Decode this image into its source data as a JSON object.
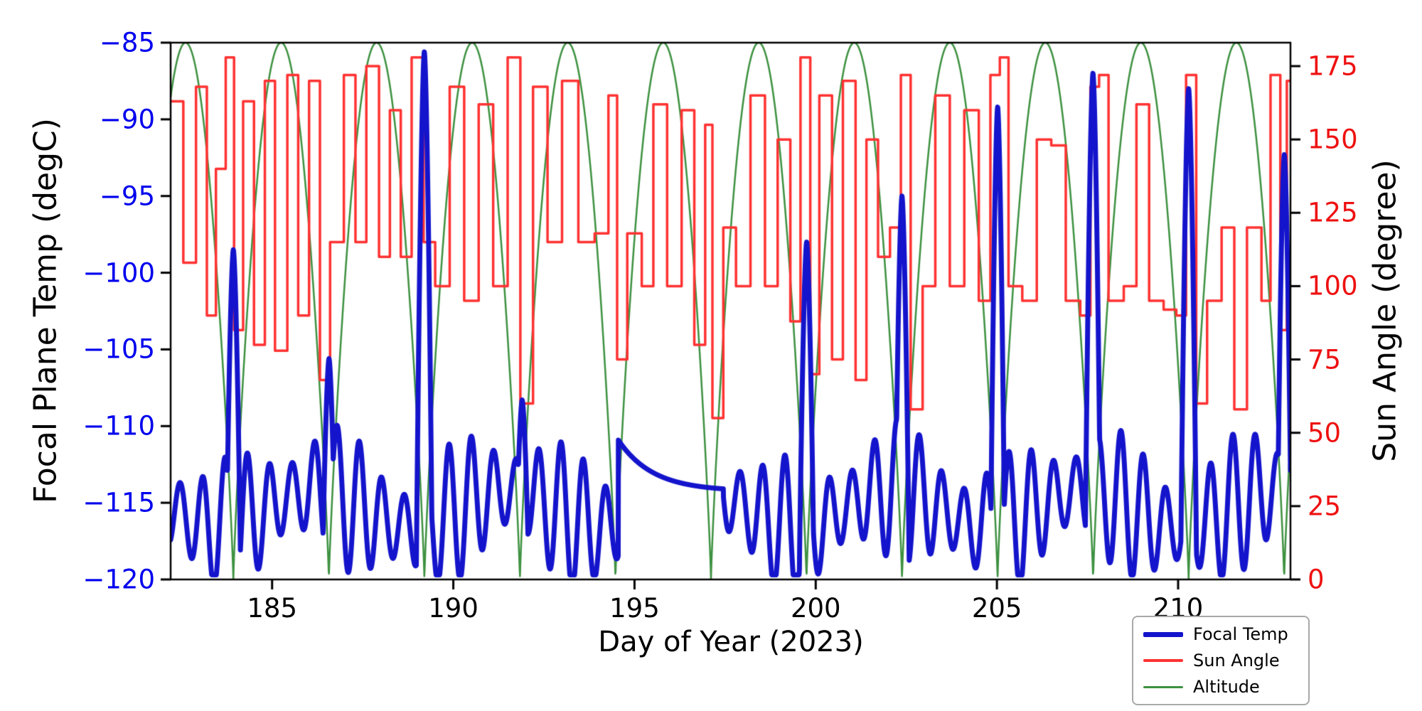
{
  "chart_data": {
    "type": "line",
    "title": "",
    "xlabel": "Day of Year (2023)",
    "ylabel_left": "Focal Plane Temp (degC)",
    "ylabel_right": "Sun Angle (degree)",
    "xlim": [
      182.2,
      213.1
    ],
    "ylim_left": [
      -120,
      -85
    ],
    "ylim_right": [
      0,
      183
    ],
    "grid": false,
    "x_ticks": {
      "values": [
        185,
        190,
        195,
        200,
        205,
        210
      ],
      "labels": [
        "185",
        "190",
        "195",
        "200",
        "205",
        "210"
      ]
    },
    "y_ticks_left": {
      "values": [
        -85,
        -90,
        -95,
        -100,
        -105,
        -110,
        -115,
        -120
      ],
      "labels": [
        "−85",
        "−90",
        "−95",
        "−100",
        "−105",
        "−110",
        "−115",
        "−120"
      ],
      "color": "#0000ee"
    },
    "y_ticks_right": {
      "values": [
        175,
        150,
        125,
        100,
        75,
        50,
        25,
        0
      ],
      "labels": [
        "175",
        "150",
        "125",
        "100",
        "75",
        "50",
        "25",
        "0"
      ],
      "color": "#ee1111"
    },
    "legend": [
      {
        "label": "Focal Temp",
        "series": "focal_temp"
      },
      {
        "label": "Sun Angle",
        "series": "sun_angle"
      },
      {
        "label": "Altitude",
        "series": "altitude"
      }
    ],
    "legend_position": "lower right, below x axis",
    "series": {
      "focal_temp": {
        "name": "Focal Temp",
        "color": "#1414cc",
        "axis": "left",
        "line_width": 7,
        "model": {
          "mean": -115.4,
          "mean_wobble": 1.2,
          "mean_period": 5.31,
          "mean_phase": 1.2,
          "amp": 3.4,
          "amp_wobble": 1.3,
          "amp_period": 3.07,
          "amp_phase": 2.1,
          "period": 0.618,
          "clip_low": -119.7,
          "clip_high": -109.4
        },
        "smooth_segment": {
          "start": 194.55,
          "end": 197.45,
          "y_start": -110.9,
          "drop": 3.35,
          "tau": 0.95
        },
        "spikes": [
          {
            "x": 183.93,
            "peak": -98.5,
            "w": 0.2
          },
          {
            "x": 186.57,
            "peak": -105.6,
            "w": 0.18
          },
          {
            "x": 189.2,
            "peak": -85.6,
            "w": 0.22
          },
          {
            "x": 191.9,
            "peak": -108.3,
            "w": 0.18
          },
          {
            "x": 199.75,
            "peak": -98.0,
            "w": 0.2
          },
          {
            "x": 202.38,
            "peak": -95.0,
            "w": 0.2
          },
          {
            "x": 205.02,
            "peak": -89.2,
            "w": 0.2
          },
          {
            "x": 207.65,
            "peak": -87.0,
            "w": 0.22
          },
          {
            "x": 210.29,
            "peak": -88.0,
            "w": 0.22
          },
          {
            "x": 212.93,
            "peak": -92.3,
            "w": 0.2
          }
        ]
      },
      "sun_angle": {
        "name": "Sun Angle",
        "color": "#ff3232",
        "axis": "right",
        "line_width": 3.5,
        "steps": [
          [
            182.2,
            163
          ],
          [
            182.55,
            108
          ],
          [
            182.9,
            168
          ],
          [
            183.2,
            90
          ],
          [
            183.45,
            140
          ],
          [
            183.72,
            178
          ],
          [
            183.95,
            85
          ],
          [
            184.2,
            163
          ],
          [
            184.5,
            80
          ],
          [
            184.8,
            170
          ],
          [
            185.08,
            78
          ],
          [
            185.42,
            172
          ],
          [
            185.72,
            90
          ],
          [
            186.02,
            170
          ],
          [
            186.32,
            68
          ],
          [
            186.6,
            115
          ],
          [
            186.98,
            172
          ],
          [
            187.3,
            115
          ],
          [
            187.6,
            175
          ],
          [
            187.95,
            110
          ],
          [
            188.25,
            160
          ],
          [
            188.55,
            110
          ],
          [
            188.85,
            178
          ],
          [
            189.18,
            115
          ],
          [
            189.5,
            100
          ],
          [
            189.9,
            168
          ],
          [
            190.3,
            95
          ],
          [
            190.7,
            162
          ],
          [
            191.1,
            100
          ],
          [
            191.5,
            178
          ],
          [
            191.85,
            60
          ],
          [
            192.2,
            168
          ],
          [
            192.6,
            115
          ],
          [
            193.0,
            170
          ],
          [
            193.45,
            115
          ],
          [
            193.9,
            118
          ],
          [
            194.28,
            165
          ],
          [
            194.52,
            75
          ],
          [
            194.8,
            118
          ],
          [
            195.2,
            100
          ],
          [
            195.52,
            162
          ],
          [
            195.9,
            100
          ],
          [
            196.3,
            160
          ],
          [
            196.65,
            80
          ],
          [
            196.95,
            155
          ],
          [
            197.15,
            55
          ],
          [
            197.45,
            120
          ],
          [
            197.8,
            100
          ],
          [
            198.2,
            165
          ],
          [
            198.6,
            100
          ],
          [
            198.95,
            150
          ],
          [
            199.3,
            88
          ],
          [
            199.58,
            178
          ],
          [
            199.85,
            70
          ],
          [
            200.1,
            165
          ],
          [
            200.45,
            75
          ],
          [
            200.75,
            170
          ],
          [
            201.1,
            68
          ],
          [
            201.4,
            150
          ],
          [
            201.72,
            110
          ],
          [
            202.05,
            120
          ],
          [
            202.35,
            172
          ],
          [
            202.62,
            58
          ],
          [
            202.95,
            100
          ],
          [
            203.3,
            165
          ],
          [
            203.7,
            100
          ],
          [
            204.1,
            160
          ],
          [
            204.5,
            95
          ],
          [
            204.82,
            172
          ],
          [
            205.08,
            178
          ],
          [
            205.32,
            100
          ],
          [
            205.7,
            95
          ],
          [
            206.1,
            150
          ],
          [
            206.5,
            148
          ],
          [
            206.9,
            95
          ],
          [
            207.3,
            90
          ],
          [
            207.58,
            168
          ],
          [
            207.82,
            172
          ],
          [
            208.08,
            95
          ],
          [
            208.5,
            100
          ],
          [
            208.85,
            162
          ],
          [
            209.2,
            95
          ],
          [
            209.6,
            92
          ],
          [
            209.95,
            90
          ],
          [
            210.22,
            172
          ],
          [
            210.5,
            60
          ],
          [
            210.8,
            95
          ],
          [
            211.2,
            120
          ],
          [
            211.55,
            58
          ],
          [
            211.9,
            120
          ],
          [
            212.3,
            95
          ],
          [
            212.55,
            172
          ],
          [
            212.82,
            85
          ],
          [
            213.0,
            170
          ]
        ]
      },
      "altitude": {
        "name": "Altitude",
        "color": "#3d9140",
        "axis": "right",
        "line_width": 2.5,
        "model": {
          "type": "abs-sine-arches",
          "x0": 183.93,
          "period": 2.636,
          "amplitude": 183,
          "power": 0.85
        }
      }
    },
    "style": {
      "background": "#ffffff",
      "spine_color": "#000000",
      "tick_color": "#000000"
    }
  }
}
